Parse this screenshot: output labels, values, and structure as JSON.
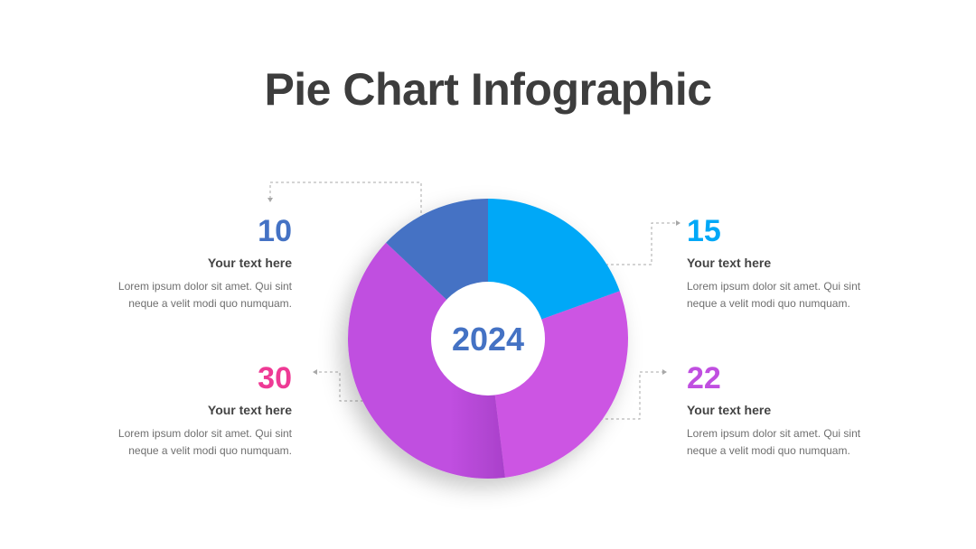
{
  "title": "Pie Chart Infographic",
  "colors": {
    "title": "#3d3d3d",
    "text_heading": "#444444",
    "text_body": "#6f6f6f",
    "connector": "#a8a8a8"
  },
  "chart_data": {
    "type": "pie",
    "title": "Pie Chart Infographic",
    "center_label": "2024",
    "center_label_color": "#4472c4",
    "slices": [
      {
        "label": "15",
        "value": 15,
        "color": "#00a8f7"
      },
      {
        "label": "22",
        "value": 22,
        "color": "#cc55e3"
      },
      {
        "label": "30",
        "value": 30,
        "color": "#c04fe0"
      },
      {
        "label": "10",
        "value": 10,
        "color": "#4472c4"
      }
    ],
    "legend": "around"
  },
  "items": [
    {
      "value": "10",
      "color": "#4472c4",
      "heading": "Your text here",
      "desc1": "Lorem ipsum dolor sit amet. Qui sint",
      "desc2": "neque a velit modi quo numquam."
    },
    {
      "value": "15",
      "color": "#00a8f7",
      "heading": "Your text here",
      "desc1": "Lorem ipsum dolor sit amet. Qui sint",
      "desc2": "neque a velit modi quo numquam."
    },
    {
      "value": "30",
      "color": "#ee3a95",
      "heading": "Your text here",
      "desc1": "Lorem ipsum dolor sit amet. Qui sint",
      "desc2": "neque a velit modi quo numquam."
    },
    {
      "value": "22",
      "color": "#c04fe0",
      "heading": "Your text here",
      "desc1": "Lorem ipsum dolor sit amet. Qui sint",
      "desc2": "neque a velit modi quo numquam."
    }
  ]
}
